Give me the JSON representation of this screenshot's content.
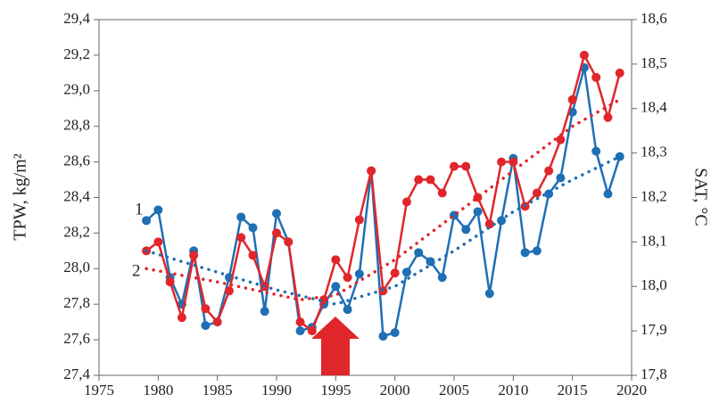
{
  "chart_data": {
    "type": "line",
    "y_label": "TPW,  kg/m²",
    "y2_label": "SAT, °C",
    "annotations": [
      "1",
      "2"
    ],
    "x": [
      1979,
      1980,
      1981,
      1982,
      1983,
      1984,
      1985,
      1986,
      1987,
      1988,
      1989,
      1990,
      1991,
      1992,
      1993,
      1994,
      1995,
      1996,
      1997,
      1998,
      1999,
      2000,
      2001,
      2002,
      2003,
      2004,
      2005,
      2006,
      2007,
      2008,
      2009,
      2010,
      2011,
      2012,
      2013,
      2014,
      2015,
      2016,
      2017,
      2018,
      2019
    ],
    "series": [
      {
        "name": "1",
        "color": "#1f6fb5",
        "axis": "y",
        "markers": true,
        "values": [
          28.27,
          28.33,
          27.95,
          27.8,
          28.1,
          27.68,
          27.7,
          27.95,
          28.29,
          28.23,
          27.76,
          28.31,
          28.15,
          27.65,
          27.67,
          27.8,
          27.9,
          27.77,
          27.97,
          28.55,
          27.62,
          27.64,
          27.98,
          28.09,
          28.04,
          27.95,
          28.3,
          28.22,
          28.32,
          27.86,
          28.27,
          28.62,
          28.09,
          28.1,
          28.42,
          28.51,
          28.88,
          29.13,
          28.66,
          28.42,
          28.63
        ]
      },
      {
        "name": "2",
        "color": "#e0262b",
        "axis": "y2",
        "markers": true,
        "values": [
          18.08,
          18.1,
          18.01,
          17.93,
          18.07,
          17.95,
          17.92,
          17.99,
          18.11,
          18.07,
          18.0,
          18.12,
          18.1,
          17.92,
          17.9,
          17.97,
          18.06,
          18.02,
          18.15,
          18.26,
          17.99,
          18.03,
          18.19,
          18.24,
          18.24,
          18.21,
          18.27,
          18.27,
          18.2,
          18.14,
          18.28,
          18.28,
          18.18,
          18.21,
          18.26,
          18.33,
          18.42,
          18.52,
          18.47,
          18.38,
          18.48
        ]
      },
      {
        "color": "#1f6fb5",
        "axis": "y",
        "markers": false,
        "dotted": true,
        "x": [
          1979,
          1985,
          1990,
          1995,
          2000,
          2005,
          2010,
          2015,
          2019
        ],
        "values": [
          28.1,
          27.98,
          27.88,
          27.8,
          27.9,
          28.1,
          28.32,
          28.5,
          28.63
        ]
      },
      {
        "color": "#e0262b",
        "axis": "y2",
        "markers": false,
        "dotted": true,
        "x": [
          1979,
          1985,
          1992,
          1995,
          2000,
          2005,
          2010,
          2015,
          2019
        ],
        "values": [
          18.04,
          18.01,
          17.97,
          17.98,
          18.06,
          18.16,
          18.26,
          18.36,
          18.42
        ]
      }
    ],
    "xlim": [
      1975,
      2020
    ],
    "xticks": [
      1975,
      1980,
      1985,
      1990,
      1995,
      2000,
      2005,
      2010,
      2015,
      2020
    ],
    "ylim": [
      27.4,
      29.4
    ],
    "yticks": [
      {
        "value": 27.4,
        "label": "27,4"
      },
      {
        "value": 27.6,
        "label": "27,6"
      },
      {
        "value": 27.8,
        "label": "27,8"
      },
      {
        "value": 28.0,
        "label": "28,0"
      },
      {
        "value": 28.2,
        "label": "28,2"
      },
      {
        "value": 28.4,
        "label": "28,4"
      },
      {
        "value": 28.6,
        "label": "28,6"
      },
      {
        "value": 28.8,
        "label": "28,8"
      },
      {
        "value": 29.0,
        "label": "29,0"
      },
      {
        "value": 29.2,
        "label": "29,2"
      },
      {
        "value": 29.4,
        "label": "29,4"
      }
    ],
    "y2lim": [
      17.8,
      18.6
    ],
    "y2ticks": [
      {
        "value": 17.8,
        "label": "17,8"
      },
      {
        "value": 17.9,
        "label": "17,9"
      },
      {
        "value": 18.0,
        "label": "18,0"
      },
      {
        "value": 18.1,
        "label": "18,1"
      },
      {
        "value": 18.2,
        "label": "18,2"
      },
      {
        "value": 18.3,
        "label": "18,3"
      },
      {
        "value": 18.4,
        "label": "18,4"
      },
      {
        "value": 18.5,
        "label": "18,5"
      },
      {
        "value": 18.6,
        "label": "18,6"
      }
    ],
    "grid": false
  }
}
